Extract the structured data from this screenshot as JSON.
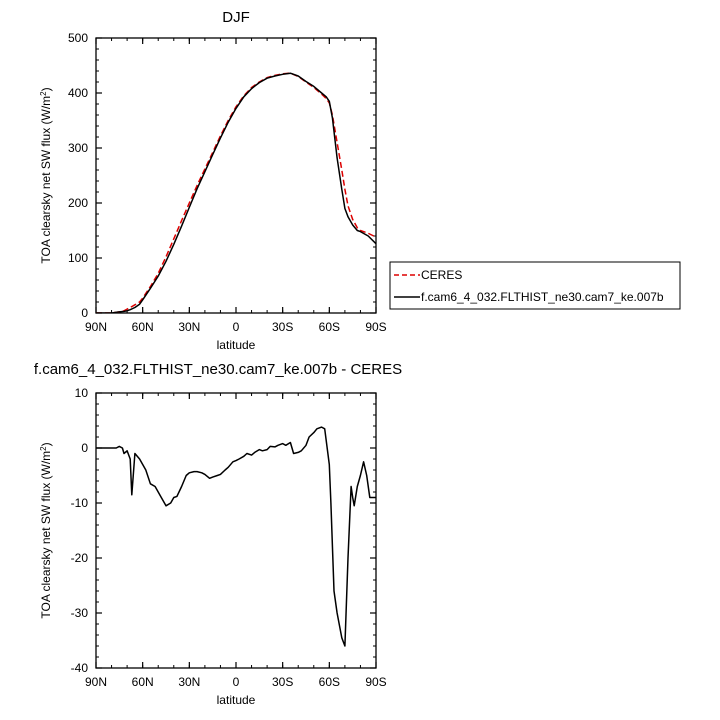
{
  "chart_data": [
    {
      "type": "line",
      "title": "DJF",
      "xlabel": "latitude",
      "ylabel_main": "TOA clearsky net SW flux (W/m",
      "ylabel_sup": "2",
      "ylabel_end": ")",
      "xlim": [
        90,
        -90
      ],
      "ylim": [
        0,
        500
      ],
      "xticks": [
        90,
        60,
        30,
        0,
        -30,
        -60,
        -90
      ],
      "xtick_labels": [
        "90N",
        "60N",
        "30N",
        "0",
        "30S",
        "60S",
        "90S"
      ],
      "yticks": [
        0,
        100,
        200,
        300,
        400,
        500
      ],
      "ytick_labels": [
        "0",
        "100",
        "200",
        "300",
        "400",
        "500"
      ],
      "legend": [
        "CERES",
        "f.cam6_4_032.FLTHIST_ne30.cam7_ke.007b"
      ],
      "series": [
        {
          "name": "CERES",
          "color": "#dd0000",
          "dash": "dashed",
          "x": [
            90,
            85,
            80,
            75,
            72,
            70,
            68,
            65,
            62,
            60,
            55,
            50,
            45,
            40,
            35,
            30,
            25,
            20,
            15,
            10,
            5,
            0,
            -5,
            -10,
            -15,
            -20,
            -25,
            -30,
            -35,
            -40,
            -45,
            -50,
            -55,
            -58,
            -60,
            -62,
            -65,
            -68,
            -70,
            -72,
            -75,
            -78,
            -80,
            -85,
            -90
          ],
          "y": [
            0,
            0,
            0,
            2,
            4,
            7,
            10,
            15,
            20,
            27,
            48,
            72,
            102,
            135,
            168,
            200,
            232,
            262,
            292,
            322,
            350,
            375,
            395,
            410,
            420,
            428,
            432,
            435,
            436,
            430,
            420,
            410,
            398,
            390,
            382,
            360,
            310,
            260,
            225,
            195,
            170,
            155,
            150,
            145,
            138
          ]
        },
        {
          "name": "f.cam6_4_032.FLTHIST_ne30.cam7_ke.007b",
          "color": "#000000",
          "dash": "solid",
          "x": [
            90,
            85,
            80,
            75,
            72,
            70,
            68,
            65,
            62,
            60,
            55,
            50,
            45,
            40,
            35,
            30,
            25,
            20,
            15,
            10,
            5,
            0,
            -5,
            -10,
            -15,
            -20,
            -25,
            -30,
            -35,
            -40,
            -45,
            -50,
            -55,
            -58,
            -60,
            -62,
            -65,
            -68,
            -70,
            -72,
            -75,
            -78,
            -80,
            -85,
            -90
          ],
          "y": [
            0,
            0,
            0,
            2,
            3,
            4,
            6,
            10,
            16,
            24,
            45,
            67,
            94,
            125,
            158,
            192,
            226,
            257,
            288,
            318,
            347,
            372,
            393,
            408,
            419,
            427,
            431,
            434,
            436,
            431,
            421,
            412,
            400,
            393,
            385,
            355,
            282,
            225,
            190,
            175,
            160,
            150,
            148,
            140,
            126
          ]
        }
      ]
    },
    {
      "type": "line",
      "title": "f.cam6_4_032.FLTHIST_ne30.cam7_ke.007b - CERES",
      "xlabel": "latitude",
      "ylabel_main": "TOA clearsky net SW flux (W/m",
      "ylabel_sup": "2",
      "ylabel_end": ")",
      "xlim": [
        90,
        -90
      ],
      "ylim": [
        -40,
        10
      ],
      "xticks": [
        90,
        60,
        30,
        0,
        -30,
        -60,
        -90
      ],
      "xtick_labels": [
        "90N",
        "60N",
        "30N",
        "0",
        "30S",
        "60S",
        "90S"
      ],
      "yticks": [
        -40,
        -30,
        -20,
        -10,
        0,
        10
      ],
      "ytick_labels": [
        "-40",
        "-30",
        "-20",
        "-10",
        "0",
        "10"
      ],
      "series": [
        {
          "name": "f.cam6_4_032.FLTHIST_ne30.cam7_ke.007b - CERES",
          "color": "#000000",
          "dash": "solid",
          "x": [
            90,
            85,
            80,
            77,
            75,
            73,
            72,
            70,
            68,
            67,
            65,
            62,
            60,
            58,
            55,
            52,
            48,
            45,
            42,
            40,
            38,
            35,
            32,
            30,
            27,
            25,
            22,
            20,
            17,
            15,
            12,
            10,
            7,
            5,
            2,
            0,
            -2,
            -5,
            -7,
            -10,
            -12,
            -15,
            -17,
            -20,
            -22,
            -25,
            -27,
            -30,
            -32,
            -35,
            -37,
            -40,
            -42,
            -45,
            -47,
            -50,
            -52,
            -55,
            -57,
            -60,
            -61,
            -63,
            -65,
            -68,
            -70,
            -72,
            -74,
            -75,
            -76,
            -78,
            -80,
            -82,
            -84,
            -86,
            -88,
            -90
          ],
          "y": [
            0,
            0,
            0,
            0,
            0.3,
            0,
            -1,
            -0.5,
            -2,
            -8.5,
            -1,
            -2,
            -3,
            -4,
            -6.5,
            -7,
            -9,
            -10.5,
            -10,
            -9,
            -8.8,
            -7,
            -5,
            -4.5,
            -4.3,
            -4.3,
            -4.5,
            -4.8,
            -5.5,
            -5.3,
            -5,
            -4.8,
            -4,
            -3.5,
            -2.5,
            -2.3,
            -2,
            -1.5,
            -1,
            -1.3,
            -0.8,
            -0.3,
            -0.5,
            -0.3,
            0.3,
            0.2,
            0.5,
            0.8,
            0.5,
            1,
            -1,
            -0.8,
            -0.5,
            0.5,
            2,
            2.8,
            3.5,
            3.8,
            3.5,
            -3,
            -10,
            -26,
            -30,
            -34.5,
            -36,
            -20,
            -7,
            -9,
            -10.5,
            -7,
            -5,
            -2.5,
            -5,
            -9,
            -9,
            -9
          ]
        }
      ]
    }
  ]
}
